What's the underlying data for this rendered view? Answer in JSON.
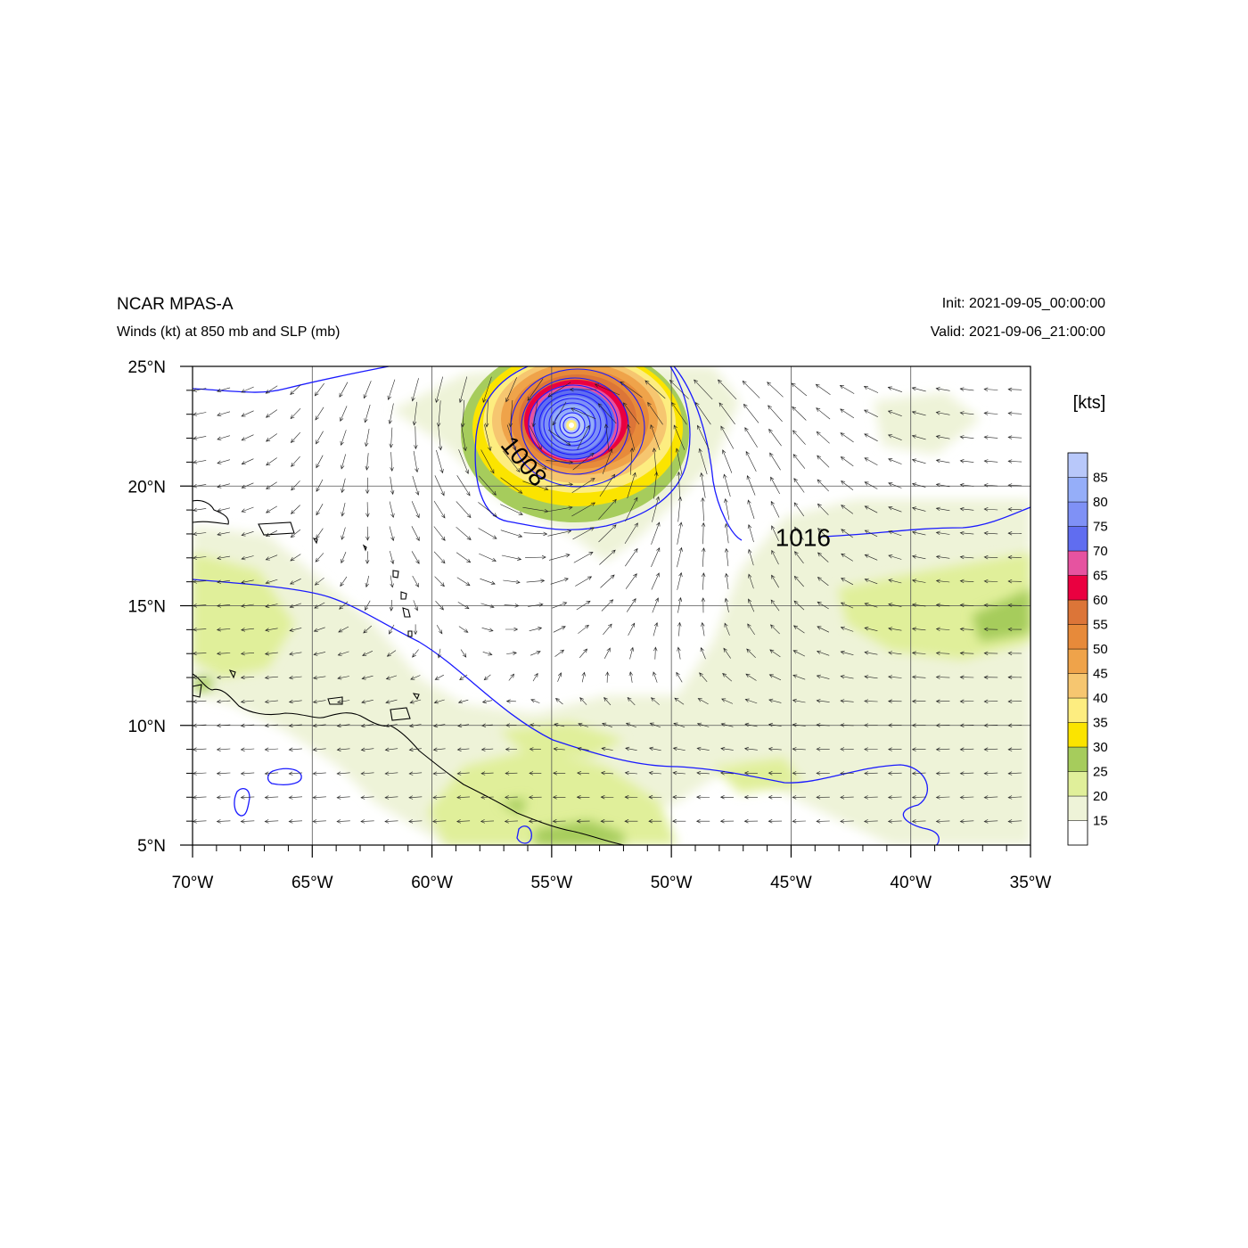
{
  "header": {
    "model": "NCAR MPAS-A",
    "description": "Winds (kt) at 850 mb and SLP (mb)",
    "init": "Init: 2021-09-05_00:00:00",
    "valid": "Valid: 2021-09-06_21:00:00"
  },
  "map": {
    "lon_range": [
      -70,
      -35
    ],
    "lat_range": [
      5,
      25
    ],
    "lat_ticks": [
      {
        "value": 25,
        "label": "25°N"
      },
      {
        "value": 20,
        "label": "20°N"
      },
      {
        "value": 15,
        "label": "15°N"
      },
      {
        "value": 10,
        "label": "10°N"
      },
      {
        "value": 5,
        "label": "5°N"
      }
    ],
    "lon_ticks": [
      {
        "value": -70,
        "label": "70°W"
      },
      {
        "value": -65,
        "label": "65°W"
      },
      {
        "value": -60,
        "label": "60°W"
      },
      {
        "value": -55,
        "label": "55°W"
      },
      {
        "value": -50,
        "label": "50°W"
      },
      {
        "value": -45,
        "label": "45°W"
      },
      {
        "value": -40,
        "label": "40°W"
      },
      {
        "value": -35,
        "label": "35°W"
      }
    ],
    "contour_labels": [
      {
        "text": "1008",
        "lon": -56.2,
        "lat": 21.0,
        "rotate": 50
      },
      {
        "text": "1016",
        "lon": -44.5,
        "lat": 17.8,
        "rotate": 0
      }
    ],
    "storm_center": {
      "lon": -54.1,
      "lat": 22.6
    }
  },
  "colorbar": {
    "units": "[kts]",
    "levels": [
      "15",
      "20",
      "25",
      "30",
      "35",
      "40",
      "45",
      "50",
      "55",
      "60",
      "65",
      "70",
      "75",
      "80",
      "85"
    ],
    "colors": [
      "#ffffff",
      "#eef3d8",
      "#e0ef9a",
      "#a6cc5c",
      "#fbe400",
      "#fded80",
      "#f6c670",
      "#efa34a",
      "#e78a3a",
      "#dc7538",
      "#ea0040",
      "#e653a0",
      "#606df0",
      "#7f91f6",
      "#95aef9",
      "#b8c8fa"
    ]
  }
}
